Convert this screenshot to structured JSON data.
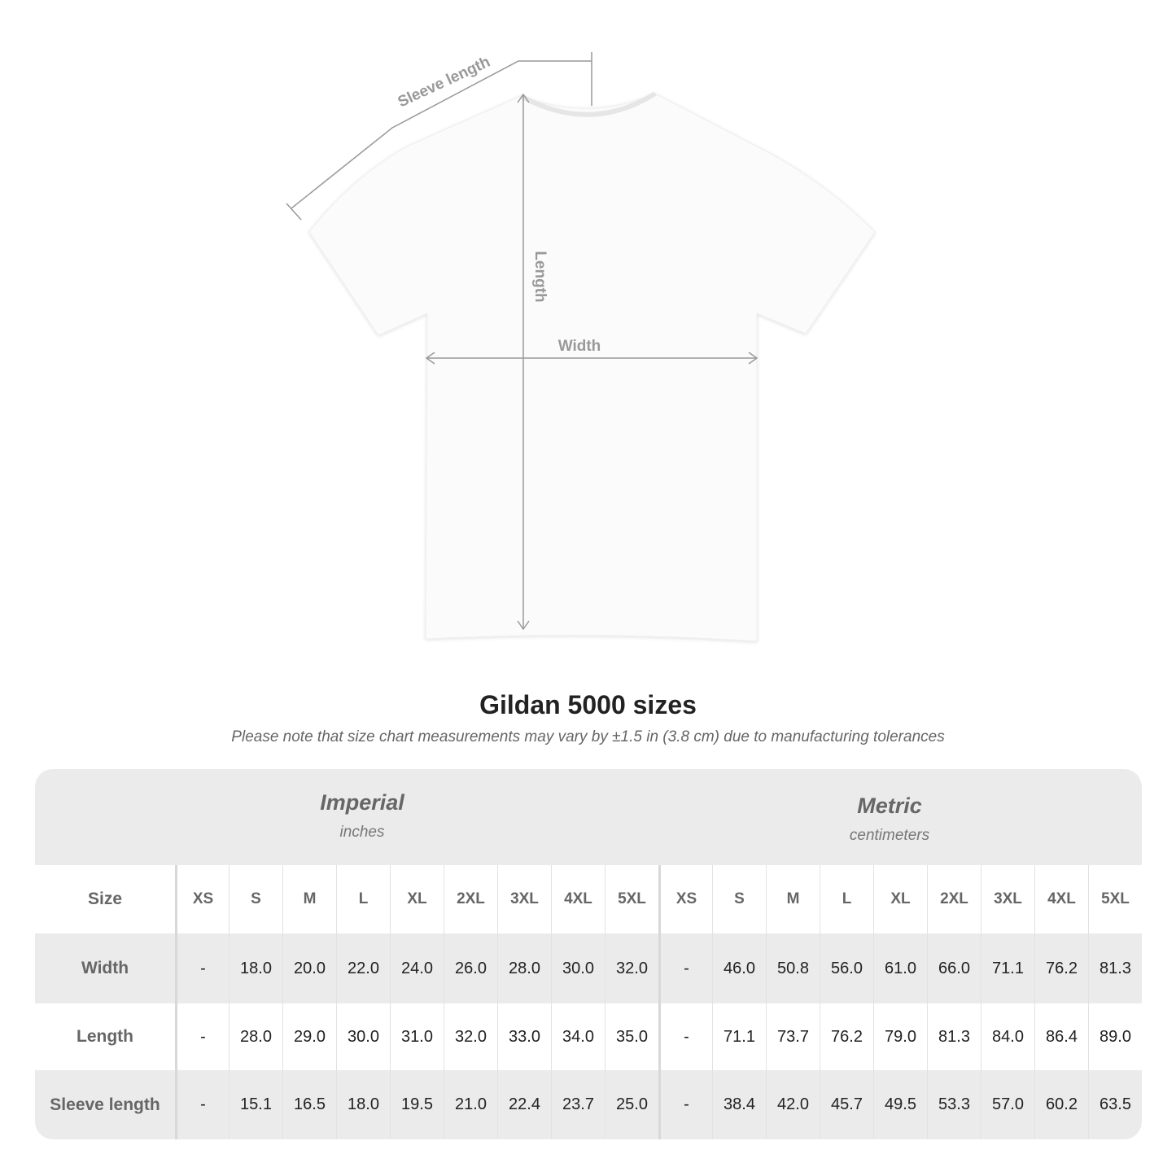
{
  "diagram": {
    "sleeve_label": "Sleeve length",
    "length_label": "Length",
    "width_label": "Width"
  },
  "title": "Gildan 5000 sizes",
  "subtitle": "Please note that size chart measurements may vary by ±1.5 in (3.8 cm) due to manufacturing tolerances",
  "imperial": {
    "name": "Imperial",
    "unit": "inches"
  },
  "metric": {
    "name": "Metric",
    "unit": "centimeters"
  },
  "size_label": "Size",
  "sizes": [
    "XS",
    "S",
    "M",
    "L",
    "XL",
    "2XL",
    "3XL",
    "4XL",
    "5XL"
  ],
  "rows": [
    {
      "label": "Width",
      "imperial": [
        "-",
        "18.0",
        "20.0",
        "22.0",
        "24.0",
        "26.0",
        "28.0",
        "30.0",
        "32.0"
      ],
      "metric": [
        "-",
        "46.0",
        "50.8",
        "56.0",
        "61.0",
        "66.0",
        "71.1",
        "76.2",
        "81.3"
      ]
    },
    {
      "label": "Length",
      "imperial": [
        "-",
        "28.0",
        "29.0",
        "30.0",
        "31.0",
        "32.0",
        "33.0",
        "34.0",
        "35.0"
      ],
      "metric": [
        "-",
        "71.1",
        "73.7",
        "76.2",
        "79.0",
        "81.3",
        "84.0",
        "86.4",
        "89.0"
      ]
    },
    {
      "label": "Sleeve length",
      "imperial": [
        "-",
        "15.1",
        "16.5",
        "18.0",
        "19.5",
        "21.0",
        "22.4",
        "23.7",
        "25.0"
      ],
      "metric": [
        "-",
        "38.4",
        "42.0",
        "45.7",
        "49.5",
        "53.3",
        "57.0",
        "60.2",
        "63.5"
      ]
    }
  ]
}
